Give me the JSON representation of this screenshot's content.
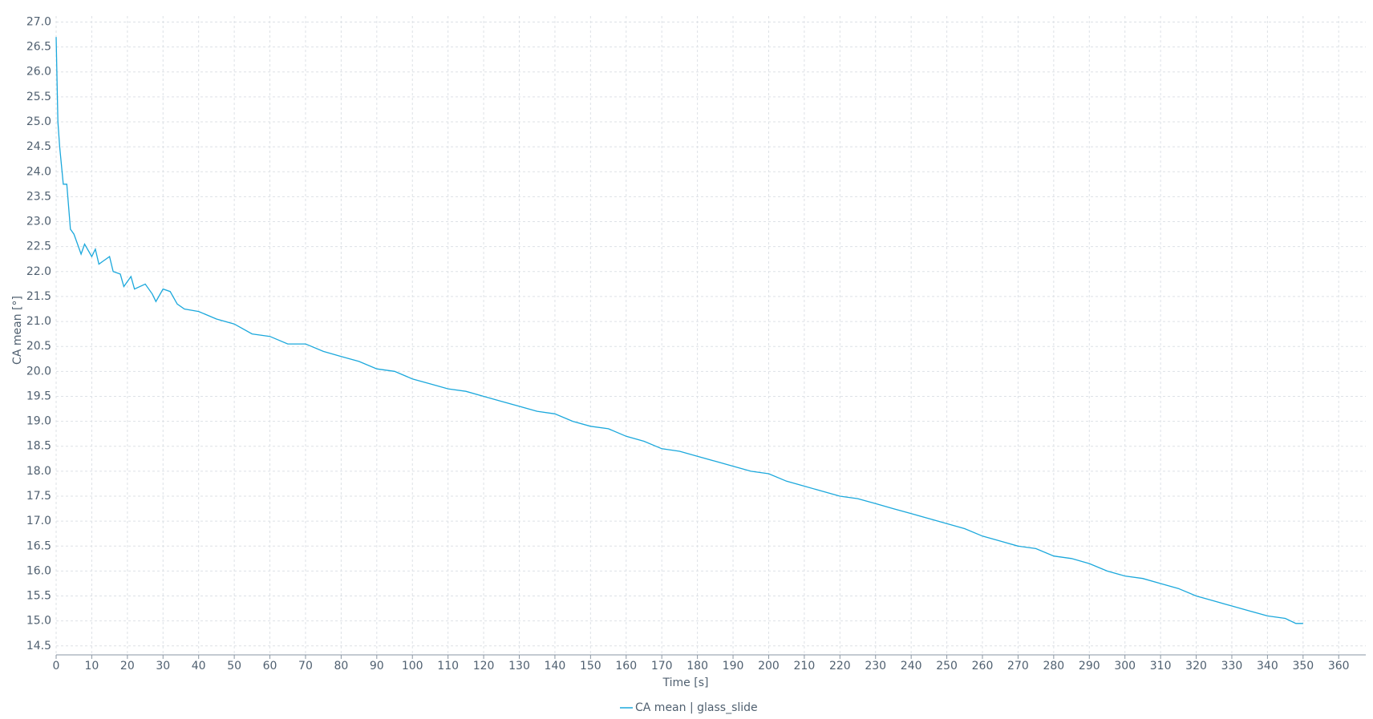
{
  "chart_data": {
    "type": "line",
    "xlabel": "Time [s]",
    "ylabel": "CA mean [°]",
    "legend": "bottom",
    "grid": true,
    "x": [
      0,
      0.5,
      1,
      2,
      3,
      4,
      5,
      6,
      7,
      8,
      10,
      11,
      12,
      15,
      16,
      18,
      19,
      21,
      22,
      25,
      27,
      28,
      30,
      32,
      34,
      36,
      40,
      45,
      50,
      55,
      60,
      65,
      70,
      75,
      80,
      85,
      90,
      95,
      100,
      105,
      110,
      115,
      120,
      125,
      130,
      135,
      140,
      145,
      150,
      155,
      160,
      165,
      170,
      175,
      180,
      185,
      190,
      195,
      200,
      205,
      210,
      215,
      220,
      225,
      230,
      235,
      240,
      245,
      250,
      255,
      260,
      265,
      270,
      275,
      280,
      285,
      290,
      295,
      300,
      305,
      310,
      315,
      320,
      325,
      330,
      335,
      340,
      345,
      348,
      350
    ],
    "series": [
      {
        "name": "CA mean | glass_slide",
        "color": "#1ba8dc",
        "values": [
          26.7,
          25.0,
          24.5,
          23.75,
          23.75,
          22.85,
          22.75,
          22.55,
          22.35,
          22.55,
          22.3,
          22.45,
          22.15,
          22.3,
          22.0,
          21.95,
          21.7,
          21.9,
          21.65,
          21.75,
          21.55,
          21.4,
          21.65,
          21.6,
          21.35,
          21.25,
          21.2,
          21.05,
          20.95,
          20.75,
          20.7,
          20.55,
          20.55,
          20.4,
          20.3,
          20.2,
          20.05,
          20.0,
          19.85,
          19.75,
          19.65,
          19.6,
          19.5,
          19.4,
          19.3,
          19.2,
          19.15,
          19.0,
          18.9,
          18.85,
          18.7,
          18.6,
          18.45,
          18.4,
          18.3,
          18.2,
          18.1,
          18.0,
          17.95,
          17.8,
          17.7,
          17.6,
          17.5,
          17.45,
          17.35,
          17.25,
          17.15,
          17.05,
          16.95,
          16.85,
          16.7,
          16.6,
          16.5,
          16.45,
          16.3,
          16.25,
          16.15,
          16.0,
          15.9,
          15.85,
          15.75,
          15.65,
          15.5,
          15.4,
          15.3,
          15.2,
          15.1,
          15.05,
          14.95,
          14.95
        ]
      }
    ],
    "xlim": [
      0,
      367.6
    ],
    "xticks": [
      0,
      10,
      20,
      30,
      40,
      50,
      60,
      70,
      80,
      90,
      100,
      110,
      120,
      130,
      140,
      150,
      160,
      170,
      180,
      190,
      200,
      210,
      220,
      230,
      240,
      250,
      260,
      270,
      280,
      290,
      300,
      310,
      320,
      330,
      340,
      350,
      360
    ],
    "ylim": [
      14.32,
      27.12
    ],
    "yticks": [
      14.5,
      {
        "value": 15,
        "label": "15.0"
      },
      15.5,
      {
        "value": 16,
        "label": "16.0"
      },
      16.5,
      {
        "value": 17,
        "label": "17.0"
      },
      17.5,
      {
        "value": 18,
        "label": "18.0"
      },
      18.5,
      {
        "value": 19,
        "label": "19.0"
      },
      19.5,
      {
        "value": 20,
        "label": "20.0"
      },
      20.5,
      {
        "value": 21,
        "label": "21.0"
      },
      21.5,
      {
        "value": 22,
        "label": "22.0"
      },
      22.5,
      {
        "value": 23,
        "label": "23.0"
      },
      23.5,
      {
        "value": 24,
        "label": "24.0"
      },
      24.5,
      {
        "value": 25,
        "label": "25.0"
      },
      25.5,
      {
        "value": 26,
        "label": "26.0"
      },
      26.5,
      {
        "value": 27,
        "label": "27.0"
      }
    ]
  }
}
